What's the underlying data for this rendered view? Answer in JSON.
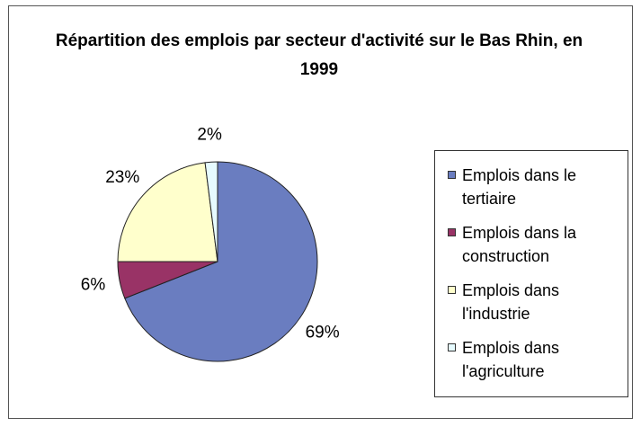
{
  "chart_data": {
    "type": "pie",
    "title": "Répartition des emplois par secteur d'activité sur le Bas Rhin, en 1999",
    "categories": [
      "Emplois dans le tertiaire",
      "Emplois dans la construction",
      "Emplois dans l'industrie",
      "Emplois dans l'agriculture"
    ],
    "values": [
      69,
      6,
      23,
      2
    ],
    "value_labels": [
      "69%",
      "6%",
      "23%",
      "2%"
    ],
    "colors": [
      "#6a7dc0",
      "#993366",
      "#ffffcc",
      "#e6fbff"
    ],
    "legend": "right"
  }
}
